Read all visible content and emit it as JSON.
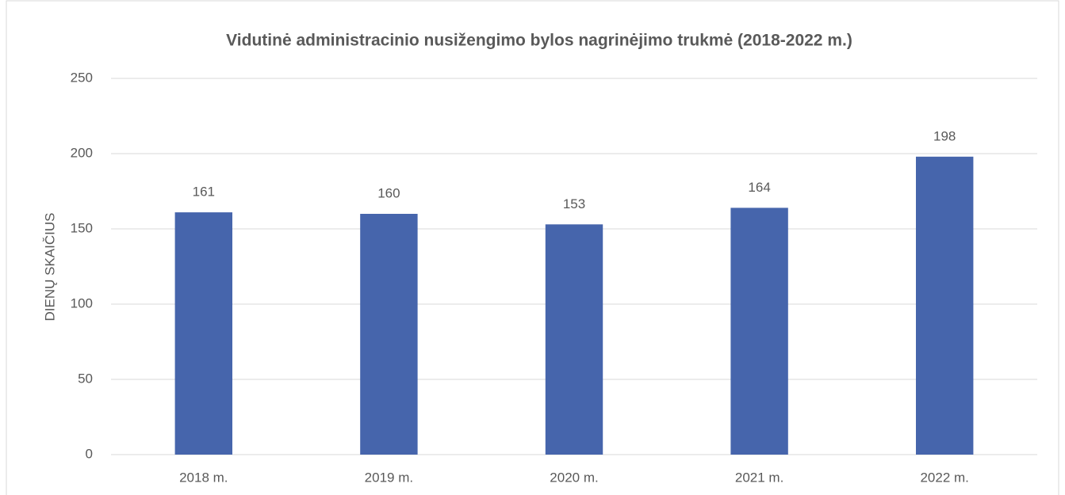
{
  "chart_data": {
    "type": "bar",
    "title": "Vidutinė administracinio nusižengimo bylos nagrinėjimo trukmė (2018-2022 m.)",
    "ylabel": "DIENŲ SKAIČIUS",
    "categories": [
      "2018 m.",
      "2019 m.",
      "2020 m.",
      "2021 m.",
      "2022 m."
    ],
    "values": [
      161,
      160,
      153,
      164,
      198
    ],
    "color": "#4665ac",
    "ylim": [
      0,
      250
    ],
    "yticks": [
      0,
      50,
      100,
      150,
      200,
      250
    ],
    "grid": true
  }
}
